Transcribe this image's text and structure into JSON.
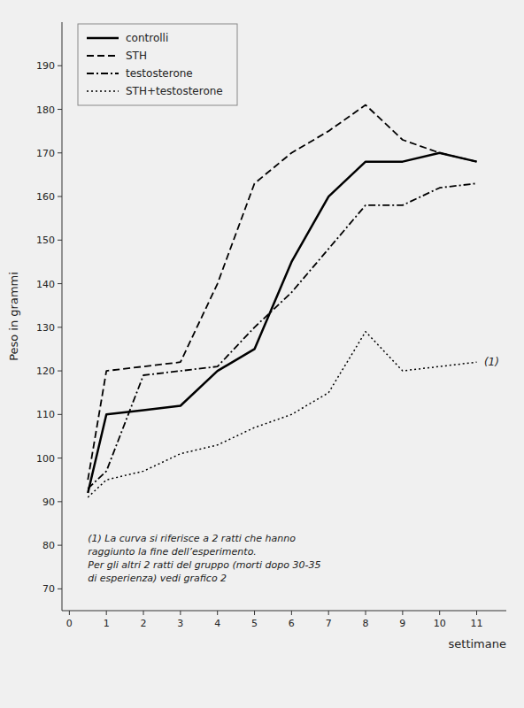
{
  "chart_data": {
    "type": "line",
    "xlabel": "settimane",
    "ylabel": "Peso in grammi",
    "background_color": "#f0f0f0",
    "x": [
      0.5,
      1,
      2,
      3,
      4,
      5,
      6,
      7,
      8,
      9,
      10,
      11
    ],
    "series": [
      {
        "name": "controlli",
        "color": "#000000",
        "line_style": "solid",
        "values": [
          92,
          110,
          111,
          112,
          120,
          125,
          145,
          160,
          168,
          168,
          170,
          168
        ]
      },
      {
        "name": "STH",
        "color": "#000000",
        "line_style": "dashed",
        "values": [
          95,
          120,
          121,
          122,
          140,
          163,
          170,
          175,
          181,
          173,
          170,
          168
        ]
      },
      {
        "name": "testosterone",
        "color": "#000000",
        "line_style": "dashdot",
        "values": [
          93,
          97,
          119,
          120,
          121,
          130,
          138,
          148,
          158,
          158,
          162,
          163
        ]
      },
      {
        "name": "STH+testosterone",
        "color": "#000000",
        "line_style": "dotted",
        "values": [
          91,
          95,
          97,
          101,
          103,
          107,
          110,
          115,
          129,
          120,
          121,
          122
        ]
      }
    ],
    "xlim": [
      -0.2,
      11.8
    ],
    "xticks": [
      0,
      1,
      2,
      3,
      4,
      5,
      6,
      7,
      8,
      9,
      10,
      11
    ],
    "ylim": [
      65,
      200
    ],
    "yticks": [
      70,
      80,
      90,
      100,
      110,
      120,
      130,
      140,
      150,
      160,
      170,
      180,
      190
    ],
    "grid": false,
    "legend": "upper left",
    "annotations": [
      {
        "text": "(1)",
        "x": 11.2,
        "y": 122
      },
      {
        "lines": [
          "(1)  La curva si riferisce a 2 ratti che hanno",
          "raggiunto la fine dell’esperimento.",
          "Per gli altri 2 ratti del gruppo (morti dopo 30-35",
          "di esperienza) vedi grafico 2"
        ],
        "x": 0.5,
        "y": 77
      }
    ]
  }
}
